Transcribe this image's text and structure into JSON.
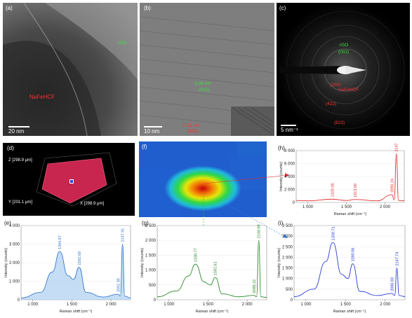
{
  "panel_a": {
    "letter": "(a)",
    "label_top": "rGO",
    "label_bottom": "NaFeHCF",
    "scale": "20 nm"
  },
  "panel_b": {
    "letter": "(b)",
    "label_lattice": "0.34 nm",
    "label_plane": "(002)",
    "label_bottom1": "0.21 nm",
    "label_bottom2": "(422)",
    "scale": "10 nm"
  },
  "panel_c": {
    "letter": "(c)",
    "label_rgo": "rGO",
    "label_rgo_plane": "(002)",
    "label_na1": "(200)",
    "label_na2": "NaFeHCF",
    "label_422": "(422)",
    "label_822": "(822)",
    "scale": "5 nm⁻¹"
  },
  "panel_d": {
    "letter": "(d)",
    "z_axis": "Z [298.9 μm]",
    "y_axis": "Y [201.1 μm]",
    "x_axis": "X [298.9 μm]"
  },
  "panel_f": {
    "letter": "(f)"
  },
  "colors": {
    "red_spectrum": "#e03030",
    "blue_spectrum": "#2a3ad8",
    "green_spectrum": "#2e8b2e",
    "light_blue": "#4aa0e0"
  },
  "chart_data": [
    {
      "panel": "(h)",
      "type": "line",
      "xlabel": "Raman shift (cm⁻¹)",
      "ylabel": "Intensity (counts)",
      "xlim": [
        850,
        2250
      ],
      "ylim": [
        0,
        8000
      ],
      "x_ticks": [
        "1 000",
        "1 500",
        "2 000"
      ],
      "y_ticks": [
        "0",
        "2 000",
        "4 000",
        "6 000",
        "8 000"
      ],
      "peaks": [
        "1320.06",
        "1613.99",
        "2090.24",
        "2147.62"
      ],
      "series": [
        {
          "x": [
            850,
            1000,
            1320,
            1500,
            1614,
            1900,
            2090,
            2120,
            2147.62,
            2175,
            2250
          ],
          "y": [
            300,
            250,
            500,
            300,
            450,
            250,
            1200,
            400,
            7500,
            300,
            250
          ]
        }
      ]
    },
    {
      "panel": "(e)",
      "type": "line",
      "xlabel": "Raman shift (cm⁻¹)",
      "ylabel": "Intensity (counts)",
      "xlim": [
        850,
        2250
      ],
      "ylim": [
        0,
        4000
      ],
      "x_ticks": [
        "1 000",
        "1 500",
        "2 000"
      ],
      "y_ticks": [
        "0",
        "1 000",
        "2 000",
        "3 000",
        "4 000"
      ],
      "peaks": [
        "1344.97",
        "1592.69",
        "2092.39",
        "2147.91"
      ],
      "series": [
        {
          "x": [
            850,
            1100,
            1250,
            1344.97,
            1450,
            1520,
            1592.69,
            1680,
            1900,
            2092.39,
            2120,
            2147.91,
            2175,
            2250
          ],
          "y": [
            100,
            400,
            1500,
            2600,
            1300,
            1100,
            1750,
            400,
            150,
            300,
            200,
            3000,
            200,
            100
          ]
        }
      ]
    },
    {
      "panel": "(g)",
      "type": "line",
      "xlabel": "Raman shift (cm⁻¹)",
      "ylabel": "Intensity (counts)",
      "xlim": [
        850,
        2250
      ],
      "ylim": [
        0,
        2500
      ],
      "x_ticks": [
        "1 000",
        "1 500",
        "2 000"
      ],
      "y_ticks": [
        "0",
        "500",
        "1 000",
        "1 500",
        "2 000",
        "2 500"
      ],
      "peaks": [
        "1339.77",
        "1592.61",
        "2088.22",
        "2148.89"
      ],
      "series": [
        {
          "x": [
            850,
            1100,
            1250,
            1339.77,
            1450,
            1530,
            1592.61,
            1680,
            1900,
            2088.22,
            2120,
            2148.89,
            2175,
            2250
          ],
          "y": [
            100,
            300,
            800,
            1200,
            600,
            500,
            750,
            200,
            100,
            150,
            100,
            2000,
            100,
            80
          ]
        }
      ]
    },
    {
      "panel": "(i)",
      "type": "line",
      "xlabel": "Raman shift (cm⁻¹)",
      "ylabel": "Intensity (counts)",
      "xlim": [
        850,
        2250
      ],
      "ylim": [
        0,
        3500
      ],
      "x_ticks": [
        "1 000",
        "1 500",
        "2 000"
      ],
      "y_ticks": [
        "0",
        "500",
        "1 000",
        "1 500",
        "2 000",
        "2 500",
        "3 000",
        "3 500"
      ],
      "peaks": [
        "1339.71",
        "1590.06",
        "2086.83",
        "2147.74"
      ],
      "series": [
        {
          "x": [
            850,
            1100,
            1250,
            1339.71,
            1450,
            1530,
            1590.06,
            1680,
            1900,
            2086.83,
            2120,
            2147.74,
            2175,
            2250
          ],
          "y": [
            150,
            500,
            1800,
            2700,
            1200,
            1000,
            1700,
            400,
            200,
            300,
            200,
            1500,
            200,
            150
          ]
        }
      ]
    }
  ]
}
